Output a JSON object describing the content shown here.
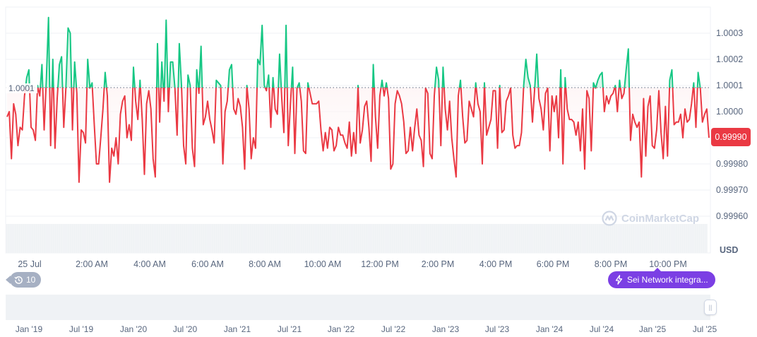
{
  "chart_data": {
    "type": "line",
    "title": "",
    "currency": "USD",
    "reference_price": 1.0001,
    "reference_label": "1.0001",
    "current_price": 0.9999,
    "current_price_label": "0.99990",
    "ylim": [
      0.99955,
      1.00038
    ],
    "yticks": [
      1.0003,
      1.0002,
      1.0001,
      1.0,
      0.9998,
      0.9997,
      0.9996
    ],
    "ytick_labels": [
      "1.0003",
      "1.0002",
      "1.0001",
      "1.0000",
      "0.99980",
      "0.99970",
      "0.99960"
    ],
    "xtick_labels": [
      "25 Jul",
      "2:00 AM",
      "4:00 AM",
      "6:00 AM",
      "8:00 AM",
      "10:00 AM",
      "12:00 PM",
      "2:00 PM",
      "4:00 PM",
      "6:00 PM",
      "8:00 PM",
      "10:00 PM"
    ],
    "colors": {
      "up": "#16c784",
      "down": "#ea3943",
      "up_fill": "#d3f4e6",
      "down_fill": "#fde7e8"
    },
    "grid": true,
    "values": [
      0.99998,
      1.0,
      0.99982,
      1.00003,
      0.99999,
      0.99987,
      0.99994,
      0.99993,
      1.00006,
      1.00013,
      1.00016,
      0.99994,
      0.99993,
      0.99989,
      1.0001,
      1.00006,
      1.00018,
      0.99993,
      1.00012,
      1.00036,
      0.99987,
      1.0002,
      0.99986,
      1.00005,
      1.00018,
      1.00021,
      0.99994,
      1.00009,
      1.00032,
      1.0003,
      0.99993,
      1.00019,
      1.00007,
      0.99973,
      0.99993,
      0.99992,
      0.99988,
      1.0002,
      1.00009,
      1.00011,
      0.99995,
      0.9998,
      0.9998,
      0.9999,
      1.00001,
      1.00015,
      1.00006,
      0.99973,
      0.99986,
      0.99983,
      0.9999,
      0.9998,
      0.99999,
      1.00004,
      1.00006,
      0.9999,
      0.99995,
      0.99989,
      1.00017,
      1.00004,
      0.99997,
      1.00012,
      0.99997,
      0.99976,
      1.00003,
      1.00008,
      1.00001,
      0.99982,
      0.99975,
      1.00026,
      0.99996,
      1.00019,
      1.00004,
      1.00035,
      1.0,
      1.00019,
      1.00019,
      1.00009,
      0.99991,
      1.00026,
      1.0001,
      0.99987,
      0.9998,
      1.00014,
      1.0001,
      0.99986,
      0.99979,
      1.00016,
      1.00007,
      1.00025,
      0.99995,
      0.99998,
      1.00004,
      0.99997,
      0.99993,
      0.99988,
      1.00012,
      1.00011,
      1.0001,
      0.9998,
      1.0,
      1.00004,
      1.00016,
      1.00018,
      1.00001,
      0.99999,
      1.00005,
      1.00002,
      0.99994,
      0.99978,
      1.0001,
      1.00001,
      0.99982,
      0.9999,
      0.99986,
      1.0002,
      1.00018,
      1.00033,
      1.0001,
      1.00008,
      1.00014,
      0.99994,
      1.00013,
      1.00001,
      0.99999,
      1.00022,
      1.00005,
      0.99992,
      1.00033,
      0.99987,
      1.00003,
      1.00017,
      0.99984,
      1.00009,
      1.00011,
      1.00004,
      0.99985,
      0.99984,
      1.00011,
      1.00007,
      1.00003,
      1.00003,
      1.00003,
      1.00004,
      0.99993,
      0.99985,
      0.99992,
      0.99986,
      0.99994,
      0.99993,
      0.99985,
      0.99987,
      0.99994,
      0.99991,
      0.99991,
      0.99988,
      0.99986,
      0.99996,
      0.99983,
      0.99992,
      0.99984,
      1.0001,
      0.99988,
      0.99993,
      1.00002,
      1.00004,
      0.99994,
      0.99981,
      1.00018,
      0.99998,
      0.99986,
      1.00006,
      1.00012,
      1.00006,
      1.00011,
      1.00005,
      0.99978,
      0.9998,
      1.00003,
      1.00008,
      1.00006,
      1.00003,
      0.99996,
      0.99984,
      0.99985,
      0.99994,
      0.99985,
      0.99994,
      1.00001,
      0.99991,
      0.99989,
      0.99979,
      1.00009,
      1.00007,
      0.99984,
      0.99982,
      1.00006,
      1.00017,
      1.00012,
      0.99987,
      1.00017,
      1.00001,
      0.99993,
      1.00004,
      0.9999,
      0.99982,
      0.99975,
      1.00006,
      1.00012,
      0.99998,
      0.99988,
      0.99989,
      1.00004,
      1.00001,
      0.99998,
      1.00011,
      1.00003,
      1.0,
      0.9998,
      1.00011,
      0.99991,
      0.99994,
      0.99997,
      1.00008,
      1.00008,
      0.99986,
      1.0001,
      0.99992,
      0.99993,
      1.00004,
      1.00006,
      1.00009,
      0.99991,
      0.99986,
      0.99987,
      0.99987,
      0.99992,
      1.0001,
      1.0002,
      1.00013,
      1.0001,
      0.99996,
      1.00008,
      1.00022,
      1.00005,
      1.00001,
      0.99993,
      1.00007,
      1.00009,
      0.99985,
      1.00006,
      1.0,
      1.00006,
      0.9999,
      1.00016,
      0.9998,
      1.00013,
      1.00001,
      0.99997,
      0.99997,
      0.99996,
      0.99991,
      0.99996,
      0.99985,
      1.00001,
      0.99978,
      1.00008,
      1.00005,
      0.99985,
      1.00011,
      1.00009,
      1.00012,
      1.00014,
      1.00015,
      1.0,
      1.00006,
      1.00003,
      1.00006,
      1.00007,
      1.0001,
      1.0,
      1.00012,
      1.00005,
      1.00007,
      1.00016,
      1.00024,
      0.99989,
      0.99999,
      0.99996,
      0.99994,
      0.99996,
      0.99975,
      1.00005,
      0.99983,
      1.00002,
      1.00006,
      0.99987,
      0.99986,
      0.99993,
      1.00008,
      0.99992,
      0.99982,
      1.00002,
      0.99983,
      1.00012,
      1.00016,
      0.99995,
      0.99996,
      0.99996,
      0.99999,
      0.9999,
      1.00001,
      0.99996,
      0.99997,
      1.00003,
      1.00011,
      0.99994,
      1.00015,
      1.00009,
      0.99996,
      0.99999,
      1.00001,
      0.9999
    ],
    "navigator": {
      "tick_labels": [
        "Jan '19",
        "Jul '19",
        "Jan '20",
        "Jul '20",
        "Jan '21",
        "Jul '21",
        "Jan '22",
        "Jul '22",
        "Jan '23",
        "Jul '23",
        "Jan '24",
        "Jul '24",
        "Jan '25",
        "Jul '25"
      ]
    }
  },
  "ui": {
    "usd_label": "USD",
    "events_count": "10",
    "news_pill_label": "Sei Network integra...",
    "watermark": "CoinMarketCap"
  }
}
